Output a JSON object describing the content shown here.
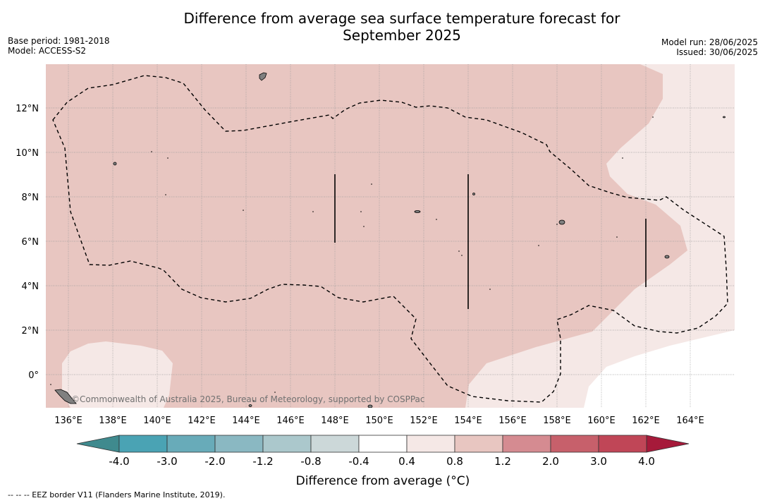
{
  "title": {
    "line1": "Difference from average sea surface temperature forecast for",
    "line2": "September 2025"
  },
  "meta_left": [
    "Base period: 1981-2018",
    "Model: ACCESS-S2"
  ],
  "meta_right": [
    "Model run: 28/06/2025",
    "Issued: 30/06/2025"
  ],
  "map": {
    "longitude_labels": [
      "136°E",
      "138°E",
      "140°E",
      "142°E",
      "144°E",
      "146°E",
      "148°E",
      "150°E",
      "152°E",
      "154°E",
      "156°E",
      "158°E",
      "160°E",
      "162°E",
      "164°E"
    ],
    "latitude_labels": [
      "12°N",
      "10°N",
      "8°N",
      "6°N",
      "4°N",
      "2°N",
      "0°"
    ],
    "copyright": "©Commonwealth of Australia 2025, Bureau of Meteorology, supported by COSPPac"
  },
  "colorbar": {
    "tick_labels": [
      "-4.0",
      "-3.0",
      "-2.0",
      "-1.2",
      "-0.8",
      "-0.4",
      "0.4",
      "0.8",
      "1.2",
      "2.0",
      "3.0",
      "4.0"
    ],
    "colors": [
      "#4aa3b4",
      "#68abb9",
      "#8ab8c2",
      "#abc8cc",
      "#ccd8d9",
      "#ffffff",
      "#f5e8e6",
      "#e8c6c1",
      "#d58b91",
      "#c7606b",
      "#c04657"
    ],
    "under_color": "#3f8a8e",
    "over_color": "#a61a3a",
    "label": "Difference from average (°C)"
  },
  "footnote": "--  --  -- EEZ border V11 (Flanders Marine Institute, 2019)."
}
